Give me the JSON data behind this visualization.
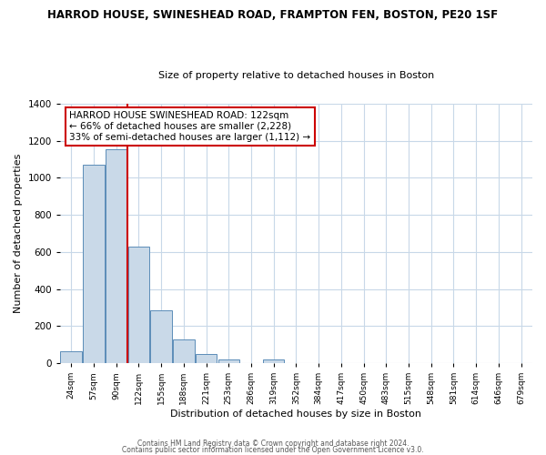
{
  "title": "HARROD HOUSE, SWINESHEAD ROAD, FRAMPTON FEN, BOSTON, PE20 1SF",
  "subtitle": "Size of property relative to detached houses in Boston",
  "xlabel": "Distribution of detached houses by size in Boston",
  "ylabel": "Number of detached properties",
  "bar_labels": [
    "24sqm",
    "57sqm",
    "90sqm",
    "122sqm",
    "155sqm",
    "188sqm",
    "221sqm",
    "253sqm",
    "286sqm",
    "319sqm",
    "352sqm",
    "384sqm",
    "417sqm",
    "450sqm",
    "483sqm",
    "515sqm",
    "548sqm",
    "581sqm",
    "614sqm",
    "646sqm",
    "679sqm"
  ],
  "bar_values": [
    65,
    1070,
    1155,
    630,
    285,
    130,
    47,
    22,
    0,
    22,
    0,
    0,
    0,
    0,
    0,
    0,
    0,
    0,
    0,
    0,
    0
  ],
  "bar_color": "#c9d9e8",
  "bar_edge_color": "#5b8db8",
  "vline_index": 2.5,
  "vline_color": "#cc0000",
  "ylim": [
    0,
    1400
  ],
  "yticks": [
    0,
    200,
    400,
    600,
    800,
    1000,
    1200,
    1400
  ],
  "annotation_text": "HARROD HOUSE SWINESHEAD ROAD: 122sqm\n← 66% of detached houses are smaller (2,228)\n33% of semi-detached houses are larger (1,112) →",
  "annotation_box_color": "#ffffff",
  "annotation_border_color": "#cc0000",
  "footer_line1": "Contains HM Land Registry data © Crown copyright and database right 2024.",
  "footer_line2": "Contains public sector information licensed under the Open Government Licence v3.0.",
  "background_color": "#ffffff",
  "grid_color": "#c8d8e8"
}
